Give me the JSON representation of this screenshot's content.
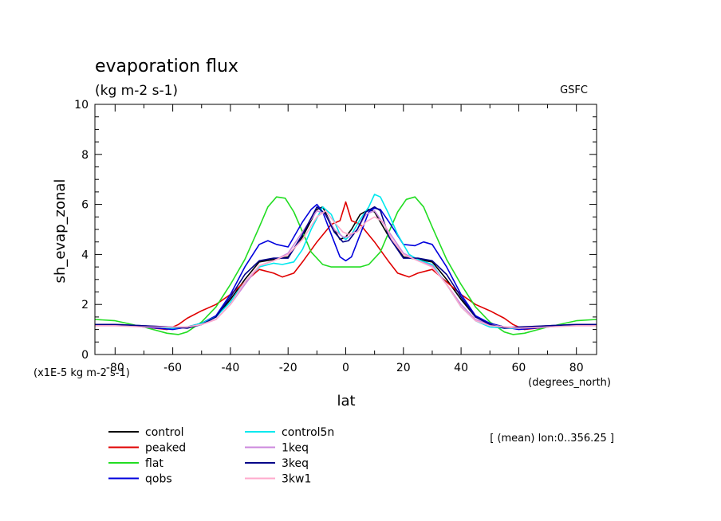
{
  "chart_data": {
    "type": "line",
    "title": "evaporation flux",
    "subtitle": "(kg m-2 s-1)",
    "source_label": "GSFC",
    "xlabel": "lat",
    "xunits": "(degrees_north)",
    "ylabel": "sh_evap_zonal",
    "yscale_note": "(x1E-5 kg m-2 s-1)",
    "mean_note": "[ (mean) lon:0..356.25 ]",
    "xlim": [
      -87,
      87
    ],
    "ylim": [
      0,
      10
    ],
    "x_ticks": [
      -80,
      -60,
      -40,
      -20,
      0,
      20,
      40,
      60,
      80
    ],
    "y_ticks": [
      0,
      2,
      4,
      6,
      8,
      10
    ],
    "grid": false,
    "legend_position": "bottom-left",
    "series": [
      {
        "name": "control",
        "color": "#000000",
        "x": [
          -87,
          -80,
          -70,
          -60,
          -55,
          -50,
          -45,
          -40,
          -35,
          -30,
          -25,
          -20,
          -15,
          -10,
          -8,
          -5,
          -2,
          0,
          2,
          5,
          8,
          10,
          15,
          20,
          25,
          30,
          35,
          40,
          45,
          50,
          55,
          60,
          70,
          80,
          87
        ],
        "y": [
          1.2,
          1.2,
          1.15,
          1.05,
          1.1,
          1.25,
          1.5,
          2.2,
          3.0,
          3.7,
          3.8,
          3.9,
          4.7,
          5.8,
          5.9,
          5.2,
          4.6,
          4.7,
          5.0,
          5.6,
          5.8,
          5.7,
          4.7,
          3.9,
          3.8,
          3.7,
          3.0,
          2.2,
          1.5,
          1.25,
          1.1,
          1.05,
          1.15,
          1.2,
          1.2
        ]
      },
      {
        "name": "peaked",
        "color": "#e00000",
        "x": [
          -87,
          -80,
          -70,
          -62,
          -58,
          -55,
          -50,
          -45,
          -40,
          -35,
          -30,
          -25,
          -22,
          -18,
          -15,
          -10,
          -5,
          -2,
          0,
          2,
          5,
          10,
          15,
          18,
          22,
          25,
          30,
          35,
          40,
          45,
          50,
          55,
          58,
          62,
          70,
          80,
          87
        ],
        "y": [
          1.2,
          1.2,
          1.1,
          1.0,
          1.2,
          1.45,
          1.75,
          2.0,
          2.4,
          2.9,
          3.4,
          3.25,
          3.1,
          3.25,
          3.7,
          4.5,
          5.2,
          5.35,
          6.1,
          5.35,
          5.2,
          4.5,
          3.7,
          3.25,
          3.1,
          3.25,
          3.4,
          2.9,
          2.4,
          2.0,
          1.75,
          1.45,
          1.2,
          1.0,
          1.1,
          1.2,
          1.2
        ]
      },
      {
        "name": "flat",
        "color": "#22dd22",
        "x": [
          -87,
          -80,
          -70,
          -62,
          -58,
          -55,
          -50,
          -45,
          -40,
          -35,
          -30,
          -27,
          -24,
          -21,
          -18,
          -15,
          -12,
          -8,
          -5,
          0,
          5,
          8,
          12,
          15,
          18,
          21,
          24,
          27,
          30,
          35,
          40,
          45,
          50,
          55,
          58,
          62,
          70,
          80,
          87
        ],
        "y": [
          1.4,
          1.35,
          1.1,
          0.85,
          0.8,
          0.9,
          1.3,
          1.9,
          2.8,
          3.8,
          5.1,
          5.9,
          6.3,
          6.25,
          5.7,
          4.9,
          4.1,
          3.6,
          3.5,
          3.5,
          3.5,
          3.6,
          4.1,
          4.9,
          5.7,
          6.2,
          6.3,
          5.9,
          5.1,
          3.8,
          2.8,
          1.9,
          1.3,
          0.9,
          0.8,
          0.85,
          1.1,
          1.35,
          1.4
        ]
      },
      {
        "name": "qobs",
        "color": "#0000dd",
        "x": [
          -87,
          -80,
          -70,
          -60,
          -55,
          -50,
          -45,
          -40,
          -35,
          -30,
          -27,
          -24,
          -20,
          -15,
          -12,
          -10,
          -8,
          -5,
          -2,
          0,
          2,
          5,
          8,
          10,
          12,
          15,
          20,
          24,
          27,
          30,
          35,
          40,
          45,
          50,
          55,
          60,
          70,
          80,
          87
        ],
        "y": [
          1.2,
          1.2,
          1.1,
          1.0,
          1.1,
          1.25,
          1.55,
          2.4,
          3.5,
          4.4,
          4.55,
          4.4,
          4.3,
          5.3,
          5.8,
          6.0,
          5.7,
          4.8,
          3.9,
          3.75,
          3.9,
          4.8,
          5.7,
          5.85,
          5.8,
          5.3,
          4.4,
          4.35,
          4.5,
          4.4,
          3.5,
          2.4,
          1.55,
          1.25,
          1.1,
          1.0,
          1.1,
          1.2,
          1.2
        ]
      },
      {
        "name": "control5n",
        "color": "#00e8ee",
        "x": [
          -87,
          -80,
          -70,
          -60,
          -55,
          -50,
          -45,
          -40,
          -35,
          -30,
          -25,
          -22,
          -18,
          -15,
          -12,
          -8,
          -5,
          -2,
          0,
          2,
          5,
          8,
          10,
          12,
          15,
          18,
          22,
          25,
          30,
          35,
          40,
          45,
          50,
          55,
          60,
          70,
          80,
          87
        ],
        "y": [
          1.2,
          1.2,
          1.15,
          1.05,
          1.1,
          1.25,
          1.5,
          2.1,
          2.9,
          3.5,
          3.65,
          3.6,
          3.7,
          4.2,
          5.0,
          5.9,
          5.6,
          4.8,
          4.6,
          4.8,
          5.4,
          5.9,
          6.4,
          6.3,
          5.6,
          4.8,
          4.0,
          3.8,
          3.6,
          2.8,
          1.9,
          1.35,
          1.1,
          1.05,
          1.05,
          1.15,
          1.2,
          1.2
        ]
      },
      {
        "name": "1keq",
        "color": "#cc88dd",
        "x": [
          -87,
          -80,
          -70,
          -60,
          -55,
          -50,
          -45,
          -40,
          -35,
          -30,
          -25,
          -20,
          -15,
          -10,
          -7,
          -4,
          -1,
          1,
          4,
          7,
          10,
          15,
          20,
          25,
          30,
          35,
          40,
          45,
          50,
          55,
          60,
          70,
          80,
          87
        ],
        "y": [
          1.2,
          1.2,
          1.15,
          1.1,
          1.1,
          1.2,
          1.4,
          2.0,
          2.8,
          3.55,
          3.75,
          4.05,
          4.9,
          5.75,
          5.6,
          5.0,
          4.7,
          4.7,
          5.0,
          5.6,
          5.75,
          4.9,
          4.05,
          3.75,
          3.55,
          2.8,
          2.0,
          1.4,
          1.2,
          1.1,
          1.1,
          1.15,
          1.2,
          1.2
        ]
      },
      {
        "name": "3keq",
        "color": "#000088",
        "x": [
          -87,
          -80,
          -70,
          -60,
          -55,
          -50,
          -45,
          -40,
          -35,
          -30,
          -25,
          -20,
          -15,
          -10,
          -7,
          -4,
          -1,
          1,
          4,
          7,
          10,
          12,
          15,
          20,
          25,
          30,
          35,
          40,
          45,
          50,
          55,
          60,
          70,
          80,
          87
        ],
        "y": [
          1.2,
          1.2,
          1.15,
          1.1,
          1.05,
          1.2,
          1.5,
          2.3,
          3.2,
          3.75,
          3.85,
          3.85,
          4.8,
          5.9,
          5.6,
          4.9,
          4.5,
          4.55,
          5.0,
          5.7,
          5.9,
          5.75,
          4.7,
          3.85,
          3.85,
          3.75,
          3.2,
          2.3,
          1.5,
          1.2,
          1.05,
          1.1,
          1.15,
          1.2,
          1.2
        ]
      },
      {
        "name": "3kw1",
        "color": "#ffaacc",
        "x": [
          -87,
          -80,
          -70,
          -60,
          -55,
          -50,
          -45,
          -40,
          -35,
          -30,
          -25,
          -20,
          -15,
          -10,
          -7,
          -4,
          -1,
          1,
          4,
          7,
          10,
          13,
          16,
          20,
          25,
          30,
          35,
          40,
          45,
          50,
          55,
          60,
          70,
          80,
          87
        ],
        "y": [
          1.15,
          1.15,
          1.1,
          1.1,
          1.1,
          1.2,
          1.4,
          2.0,
          2.9,
          3.55,
          3.75,
          4.0,
          4.6,
          5.5,
          5.75,
          5.3,
          4.9,
          4.8,
          4.9,
          5.3,
          5.5,
          5.3,
          4.6,
          4.0,
          3.75,
          3.5,
          2.8,
          1.9,
          1.35,
          1.15,
          1.1,
          1.05,
          1.1,
          1.15,
          1.15
        ]
      }
    ]
  }
}
